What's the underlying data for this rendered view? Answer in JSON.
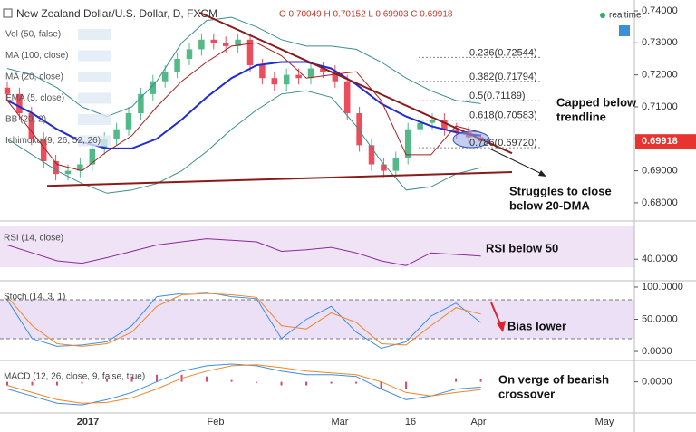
{
  "chart_data": {
    "type": "candlestick",
    "title": "New Zealand Dollar/U.S. Dollar, D, FXCM",
    "ohlc_label": "O 0.70049 H 0.70152 L 0.69903 C 0.69918",
    "realtime_label": "realtime",
    "study_labels": [
      "Vol (50, false)",
      "MA (100, close)",
      "MA (20, close)",
      "EMA (5, close)",
      "BB (20, 2)",
      "Ichimoku (9, 26, 52, 26)"
    ],
    "open": [
      0.716,
      0.714,
      0.708,
      0.7,
      0.693,
      0.689,
      0.69,
      0.692,
      0.697,
      0.7,
      0.703,
      0.708,
      0.714,
      0.718,
      0.721,
      0.725,
      0.728,
      0.731,
      0.73,
      0.729,
      0.731,
      0.723,
      0.719,
      0.717,
      0.72,
      0.719,
      0.722,
      0.721,
      0.718,
      0.708,
      0.698,
      0.692,
      0.69,
      0.694,
      0.703,
      0.705,
      0.706,
      0.703,
      0.702,
      0.70049
    ],
    "high": [
      0.718,
      0.716,
      0.71,
      0.702,
      0.695,
      0.692,
      0.694,
      0.699,
      0.702,
      0.705,
      0.71,
      0.716,
      0.72,
      0.723,
      0.727,
      0.73,
      0.733,
      0.733,
      0.732,
      0.733,
      0.733,
      0.725,
      0.721,
      0.722,
      0.722,
      0.724,
      0.724,
      0.723,
      0.72,
      0.71,
      0.7,
      0.694,
      0.696,
      0.705,
      0.707,
      0.708,
      0.708,
      0.705,
      0.704,
      0.70152
    ],
    "low": [
      0.712,
      0.706,
      0.698,
      0.691,
      0.687,
      0.687,
      0.688,
      0.69,
      0.695,
      0.698,
      0.701,
      0.706,
      0.712,
      0.716,
      0.719,
      0.723,
      0.726,
      0.728,
      0.727,
      0.727,
      0.721,
      0.717,
      0.715,
      0.715,
      0.717,
      0.717,
      0.719,
      0.716,
      0.706,
      0.696,
      0.69,
      0.688,
      0.688,
      0.692,
      0.701,
      0.703,
      0.701,
      0.7,
      0.6985,
      0.69903
    ],
    "close": [
      0.714,
      0.708,
      0.7,
      0.693,
      0.689,
      0.69,
      0.692,
      0.697,
      0.7,
      0.703,
      0.708,
      0.714,
      0.718,
      0.721,
      0.725,
      0.728,
      0.731,
      0.73,
      0.729,
      0.731,
      0.723,
      0.719,
      0.717,
      0.72,
      0.719,
      0.722,
      0.721,
      0.718,
      0.708,
      0.698,
      0.692,
      0.69,
      0.694,
      0.703,
      0.705,
      0.706,
      0.703,
      0.702,
      0.7005,
      0.69918
    ],
    "up_color": "#53b987",
    "down_color": "#eb4d5c",
    "overlays": [
      {
        "color": "#3b8e8e",
        "values": [
          0.722,
          0.72,
          0.716,
          0.71,
          0.707,
          0.71,
          0.718,
          0.73,
          0.737,
          0.738,
          0.735,
          0.731,
          0.729,
          0.729,
          0.728,
          0.724,
          0.719,
          0.715,
          0.712,
          0.711
        ]
      },
      {
        "color": "#3b8e8e",
        "values": [
          0.7,
          0.695,
          0.69,
          0.686,
          0.683,
          0.684,
          0.686,
          0.69,
          0.696,
          0.703,
          0.709,
          0.714,
          0.715,
          0.713,
          0.704,
          0.693,
          0.684,
          0.685,
          0.689,
          0.691
        ]
      },
      {
        "color": "#1f2bd4",
        "values": [
          0.712,
          0.708,
          0.703,
          0.699,
          0.697,
          0.697,
          0.7,
          0.706,
          0.713,
          0.719,
          0.723,
          0.724,
          0.724,
          0.722,
          0.717,
          0.711,
          0.707,
          0.704,
          0.702,
          0.701
        ]
      },
      {
        "color": "#a52020",
        "values": [
          0.712,
          0.702,
          0.692,
          0.69,
          0.696,
          0.701,
          0.71,
          0.718,
          0.724,
          0.729,
          0.73,
          0.726,
          0.719,
          0.72,
          0.721,
          0.712,
          0.695,
          0.695,
          0.704,
          0.702
        ]
      }
    ],
    "trendlines": [
      {
        "color": "#8b1a1a",
        "values": [
          0.7395,
          0.6955
        ]
      },
      {
        "color": "#8b1a1a",
        "values": [
          0.6853,
          0.6896
        ]
      }
    ],
    "fib_levels": [
      {
        "value": 0.72544,
        "label": "0.236(0.72544)"
      },
      {
        "value": 0.71794,
        "label": "0.382(0.71794)"
      },
      {
        "value": 0.71189,
        "label": "0.5(0.71189)"
      },
      {
        "value": 0.70583,
        "label": "0.618(0.70583)"
      },
      {
        "value": 0.6972,
        "label": "0.786(0.69720)"
      }
    ],
    "ylim": [
      0.6746,
      0.7434
    ],
    "yticks": [
      {
        "value": 0.74,
        "label": "0.74000"
      },
      {
        "value": 0.73,
        "label": "0.73000"
      },
      {
        "value": 0.72,
        "label": "0.72000"
      },
      {
        "value": 0.71,
        "label": "0.71000"
      },
      {
        "value": 0.7,
        "label": "0.70000"
      },
      {
        "value": 0.69,
        "label": "0.69000"
      },
      {
        "value": 0.68,
        "label": "0.68000"
      }
    ],
    "price_tag_color": "#e8342f",
    "x_labels": [
      "2017",
      "Feb",
      "Mar",
      "16",
      "Apr",
      "May"
    ],
    "rsi": {
      "title": "RSI (14, close)",
      "color": "#8a2a9a",
      "values": [
        58,
        48,
        38,
        35,
        42,
        50,
        58,
        62,
        66,
        64,
        62,
        50,
        52,
        55,
        48,
        38,
        32,
        48,
        46,
        44
      ],
      "ylim": [
        15,
        85
      ],
      "yticks": [
        {
          "value": 40,
          "label": "40.0000"
        }
      ]
    },
    "stoch": {
      "title": "Stoch (14, 3, 1)",
      "series": [
        {
          "color": "#3d8fe0",
          "values": [
            80,
            20,
            8,
            10,
            15,
            40,
            85,
            90,
            92,
            85,
            82,
            20,
            50,
            70,
            30,
            5,
            15,
            55,
            75,
            45
          ]
        },
        {
          "color": "#f0862a",
          "values": [
            85,
            40,
            12,
            8,
            12,
            30,
            70,
            88,
            90,
            88,
            84,
            40,
            35,
            60,
            45,
            12,
            10,
            40,
            68,
            58
          ]
        }
      ],
      "ylim": [
        -14,
        107
      ],
      "yticks": [
        {
          "value": 100,
          "label": "100.0000"
        },
        {
          "value": 50,
          "label": "50.0000"
        },
        {
          "value": 0,
          "label": "0.0000"
        }
      ]
    },
    "macd": {
      "title": "MACD (12, 26, close, 9, false, true)",
      "series": [
        {
          "color": "#3d8fe0",
          "values": [
            -0.002,
            -0.004,
            -0.006,
            -0.0065,
            -0.005,
            -0.003,
            0,
            0.003,
            0.0045,
            0.005,
            0.0045,
            0.003,
            0.002,
            0.002,
            0.0015,
            -0.002,
            -0.005,
            -0.004,
            -0.002,
            -0.0015
          ]
        },
        {
          "color": "#f0862a",
          "values": [
            -0.001,
            -0.003,
            -0.005,
            -0.006,
            -0.0058,
            -0.0045,
            -0.002,
            0.001,
            0.003,
            0.0045,
            0.0048,
            0.004,
            0.003,
            0.0025,
            0.002,
            0,
            -0.003,
            -0.004,
            -0.003,
            -0.0022
          ]
        }
      ],
      "histogram": [
        -0.001,
        -0.001,
        -0.001,
        -0.0005,
        0.0008,
        0.0015,
        0.002,
        0.002,
        0.0015,
        0.0005,
        -0.0003,
        -0.001,
        -0.001,
        -0.0005,
        -0.0005,
        -0.002,
        -0.002,
        0,
        0.001,
        0.0007
      ],
      "histogram_color": "#d9467a",
      "ylim": [
        -0.0085,
        0.0055
      ],
      "yticks": [
        {
          "value": 0,
          "label": "0.0000"
        }
      ]
    },
    "annotations": [
      {
        "lines": [
          "Capped below",
          "trendline"
        ]
      },
      {
        "lines": [
          "Struggles to close",
          "below 20-DMA"
        ]
      },
      {
        "lines": [
          "RSI below 50"
        ]
      },
      {
        "lines": [
          "Bias lower"
        ]
      },
      {
        "lines": [
          "On verge of bearish",
          "crossover"
        ]
      }
    ]
  }
}
